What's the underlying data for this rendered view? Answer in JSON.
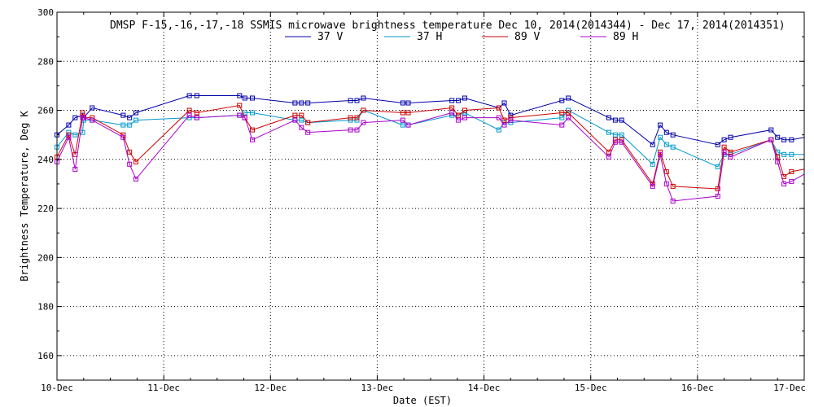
{
  "chart_data": {
    "type": "line",
    "title": "DMSP F-15,-16,-17,-18 SSMIS microwave brightness temperature Dec 10, 2014(2014344) - Dec 17, 2014(2014351)",
    "xlabel": "Date (EST)",
    "ylabel": "Brightness Temperature, Deg K",
    "xlim": [
      0,
      7
    ],
    "ylim": [
      150,
      300
    ],
    "grid": true,
    "legend_position": "top-center",
    "x_ticks": [
      {
        "value": 0,
        "label": "10-Dec"
      },
      {
        "value": 1,
        "label": "11-Dec"
      },
      {
        "value": 2,
        "label": "12-Dec"
      },
      {
        "value": 3,
        "label": "13-Dec"
      },
      {
        "value": 4,
        "label": "14-Dec"
      },
      {
        "value": 5,
        "label": "15-Dec"
      },
      {
        "value": 6,
        "label": "16-Dec"
      },
      {
        "value": 7,
        "label": "17-Dec"
      }
    ],
    "y_ticks": [
      160,
      180,
      200,
      220,
      240,
      260,
      280,
      300
    ],
    "series": [
      {
        "name": "37 V",
        "color": "#0000aa",
        "x": [
          0.0,
          0.11,
          0.17,
          0.24,
          0.25,
          0.33,
          0.62,
          0.68,
          0.74,
          1.24,
          1.31,
          1.71,
          1.76,
          1.83,
          2.23,
          2.29,
          2.35,
          2.75,
          2.81,
          2.87,
          3.24,
          3.29,
          3.7,
          3.76,
          3.82,
          4.14,
          4.19,
          4.25,
          4.73,
          4.79,
          5.17,
          5.23,
          5.29,
          5.58,
          5.65,
          5.71,
          5.77,
          6.19,
          6.25,
          6.31,
          6.69,
          6.75,
          6.81,
          6.88,
          7.0
        ],
        "values": [
          250,
          254,
          257,
          258,
          257,
          261,
          258,
          257,
          259,
          266,
          266,
          266,
          265,
          265,
          263,
          263,
          263,
          264,
          264,
          265,
          263,
          263,
          264,
          264,
          265,
          261,
          263,
          258,
          264,
          265,
          257,
          256,
          256,
          246,
          254,
          251,
          250,
          246,
          248,
          249,
          252,
          249,
          248,
          248,
          249
        ]
      },
      {
        "name": "37 H",
        "color": "#0099cc",
        "x": [
          0.0,
          0.11,
          0.17,
          0.24,
          0.25,
          0.33,
          0.62,
          0.68,
          0.74,
          1.24,
          1.31,
          1.71,
          1.76,
          1.83,
          2.23,
          2.29,
          2.35,
          2.75,
          2.81,
          2.87,
          3.24,
          3.29,
          3.7,
          3.76,
          3.82,
          4.14,
          4.19,
          4.25,
          4.73,
          4.79,
          5.17,
          5.23,
          5.29,
          5.58,
          5.65,
          5.71,
          5.77,
          6.19,
          6.25,
          6.31,
          6.69,
          6.75,
          6.81,
          6.88,
          7.0
        ],
        "values": [
          245,
          251,
          250,
          251,
          256,
          256,
          254,
          254,
          256,
          257,
          257,
          258,
          259,
          259,
          256,
          256,
          255,
          256,
          256,
          260,
          254,
          254,
          258,
          258,
          259,
          252,
          255,
          255,
          257,
          260,
          251,
          250,
          250,
          238,
          249,
          246,
          245,
          237,
          242,
          242,
          248,
          243,
          242,
          242,
          242
        ]
      },
      {
        "name": "89 V",
        "color": "#cc0000",
        "x": [
          0.0,
          0.11,
          0.17,
          0.24,
          0.25,
          0.33,
          0.62,
          0.68,
          0.74,
          1.24,
          1.31,
          1.71,
          1.76,
          1.83,
          2.23,
          2.29,
          2.35,
          2.75,
          2.81,
          2.87,
          3.24,
          3.29,
          3.7,
          3.76,
          3.82,
          4.14,
          4.19,
          4.25,
          4.73,
          4.79,
          5.17,
          5.23,
          5.29,
          5.58,
          5.65,
          5.71,
          5.77,
          6.19,
          6.25,
          6.31,
          6.69,
          6.75,
          6.81,
          6.88,
          7.0
        ],
        "values": [
          241,
          250,
          242,
          259,
          257,
          257,
          250,
          243,
          239,
          260,
          259,
          262,
          257,
          252,
          258,
          258,
          255,
          257,
          257,
          260,
          259,
          259,
          261,
          258,
          260,
          261,
          256,
          257,
          259,
          259,
          243,
          248,
          248,
          230,
          243,
          235,
          229,
          228,
          245,
          243,
          248,
          241,
          233,
          235,
          236
        ]
      },
      {
        "name": "89 H",
        "color": "#aa00cc",
        "x": [
          0.0,
          0.11,
          0.17,
          0.24,
          0.25,
          0.33,
          0.62,
          0.68,
          0.74,
          1.24,
          1.31,
          1.71,
          1.76,
          1.83,
          2.23,
          2.29,
          2.35,
          2.75,
          2.81,
          2.87,
          3.24,
          3.29,
          3.7,
          3.76,
          3.82,
          4.14,
          4.19,
          4.25,
          4.73,
          4.79,
          5.17,
          5.23,
          5.29,
          5.58,
          5.65,
          5.71,
          5.77,
          6.19,
          6.25,
          6.31,
          6.69,
          6.75,
          6.81,
          6.88,
          7.0
        ],
        "values": [
          239,
          249,
          236,
          257,
          257,
          256,
          249,
          238,
          232,
          258,
          257,
          258,
          257,
          248,
          256,
          253,
          251,
          252,
          252,
          255,
          256,
          254,
          259,
          256,
          257,
          257,
          254,
          256,
          254,
          257,
          241,
          247,
          247,
          229,
          242,
          230,
          223,
          225,
          243,
          241,
          248,
          239,
          230,
          231,
          234
        ]
      }
    ]
  }
}
